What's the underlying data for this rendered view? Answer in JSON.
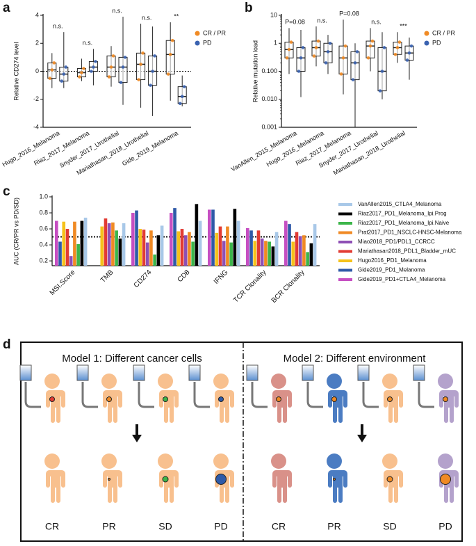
{
  "chart_data": [
    {
      "type": "box",
      "panel_label": "a",
      "ylabel": "Relative CD274 level",
      "categories": [
        "Hugo_2016_Melanoma",
        "Riaz_2017_Melanoma",
        "Snyder_2017_Urothelial",
        "Mariathasan_2018_Urothelial",
        "Gide_2019_Melanoma"
      ],
      "annotations": [
        "n.s.",
        "n.s.",
        "n.s.",
        "n.s.",
        "**"
      ],
      "ylim": [
        -4,
        4
      ],
      "yticks": [
        -4,
        -2,
        0,
        2,
        4
      ],
      "hline": 0,
      "series": [
        {
          "name": "CR / PR",
          "color": "#f08a24",
          "min": [
            -1.2,
            -0.7,
            -1.1,
            -2.6,
            -2.1
          ],
          "q1": [
            -0.5,
            -0.4,
            -0.4,
            -0.6,
            -0.2
          ],
          "median": [
            0.1,
            -0.1,
            0.3,
            0.5,
            1.2
          ],
          "q3": [
            0.6,
            0.2,
            1.1,
            1.3,
            2.2
          ],
          "max": [
            1.3,
            0.9,
            1.8,
            3.4,
            3.5
          ]
        },
        {
          "name": "PD",
          "color": "#3a62b0",
          "min": [
            -1.2,
            -1.0,
            -2.4,
            -3.2,
            -2.5
          ],
          "q1": [
            -0.7,
            0.0,
            -0.8,
            -1.0,
            -2.3
          ],
          "median": [
            -0.2,
            0.3,
            0.3,
            0.0,
            -1.8
          ],
          "q3": [
            0.3,
            0.7,
            1.0,
            1.1,
            -1.1
          ],
          "max": [
            2.8,
            1.6,
            3.9,
            3.2,
            -0.3
          ]
        }
      ]
    },
    {
      "type": "box",
      "panel_label": "b",
      "ylabel": "Relative mutation load",
      "log": true,
      "categories": [
        "VanAllen_2015_Melanoma",
        "Hugo_2016_Melanoma",
        "Riaz_2017_Melanoma",
        "Snyder_2017_Urothelial",
        "Mariathasan_2018_Urothelial"
      ],
      "annotations": [
        "P=0.08",
        "n.s.",
        "P=0.08",
        "n.s.",
        "***"
      ],
      "ylim": [
        0.001,
        10
      ],
      "yticks": [
        0.001,
        {
          "value": 0.01,
          "label": "0.010"
        },
        {
          "value": 0.1,
          "label": "0.100"
        },
        1,
        10
      ],
      "series": [
        {
          "name": "CR / PR",
          "color": "#f08a24",
          "min": [
            0.08,
            0.15,
            0.015,
            0.1,
            0.2
          ],
          "q1": [
            0.3,
            0.35,
            0.08,
            0.3,
            0.4
          ],
          "median": [
            0.6,
            0.7,
            0.3,
            0.8,
            0.7
          ],
          "q3": [
            1.1,
            1.2,
            0.8,
            1.2,
            1.1
          ],
          "max": [
            3.5,
            4,
            7,
            3.5,
            2.5
          ]
        },
        {
          "name": "PD",
          "color": "#3a62b0",
          "min": [
            0.012,
            0.08,
            0.001,
            0.01,
            0.05
          ],
          "q1": [
            0.1,
            0.2,
            0.05,
            0.02,
            0.25
          ],
          "median": [
            0.3,
            0.5,
            0.2,
            0.1,
            0.45
          ],
          "q3": [
            0.7,
            1,
            0.5,
            0.7,
            0.8
          ],
          "max": [
            3,
            2,
            1,
            2.5,
            1.6
          ]
        }
      ]
    },
    {
      "type": "bar",
      "panel_label": "c",
      "ylabel": "AUC (CR/PR vs PD/SD)",
      "categories": [
        "MSI.Score",
        "TMB",
        "CD274",
        "CD8",
        "IFNG",
        "TCR Clonality",
        "BCR Clonality"
      ],
      "ylim": [
        0.14,
        1
      ],
      "yticks": [
        0.2,
        0.4,
        0.6,
        0.8,
        {
          "value": 1,
          "label": "1.0"
        }
      ],
      "hline": 0.5,
      "series": [
        {
          "name": "Gide2019_PD1+CTLA4_Melanoma",
          "color": "#c64fc2",
          "values": [
            0.7,
            null,
            0.8,
            0.8,
            0.84,
            0.61,
            0.7
          ]
        },
        {
          "name": "Gide2019_PD1_Melanoma",
          "color": "#2f5aa8",
          "values": [
            0.44,
            null,
            0.83,
            0.86,
            0.84,
            0.58,
            0.66
          ]
        },
        {
          "name": "Hugo2016_PD1_Melanoma",
          "color": "#f5c21b",
          "values": [
            0.69,
            0.63,
            0.6,
            0.57,
            0.55,
            0.45,
            0.44
          ]
        },
        {
          "name": "Mariathasan2018_PDL1_Bladder_mUC",
          "color": "#e23b33",
          "values": [
            0.6,
            0.73,
            0.59,
            0.6,
            0.63,
            0.58,
            0.56
          ]
        },
        {
          "name": "Miao2018_PD1/PDL1_CCRCC",
          "color": "#8e4fb5",
          "values": [
            0.26,
            0.67,
            0.43,
            0.52,
            0.45,
            0.48,
            0.51
          ]
        },
        {
          "name": "Prat2017_PD1_NSCLC-HNSC-Melanoma",
          "color": "#f08a24",
          "values": [
            0.69,
            0.68,
            0.58,
            0.56,
            0.63,
            0.45,
            0.52
          ]
        },
        {
          "name": "Riaz2017_PD1_Melanoma_Ipi.Naive",
          "color": "#3cb54a",
          "values": [
            0.41,
            0.58,
            0.28,
            0.44,
            0.43,
            0.44,
            0.31
          ]
        },
        {
          "name": "Riaz2017_PD1_Melanoma_Ipi.Prog",
          "color": "#000000",
          "values": [
            0.7,
            0.48,
            0.52,
            0.91,
            0.85,
            0.38,
            0.42
          ]
        },
        {
          "name": "VanAllen2015_CTLA4_Melanoma",
          "color": "#a8c8e8",
          "values": [
            0.74,
            0.67,
            0.64,
            0.7,
            0.7,
            0.56,
            0.66
          ]
        }
      ]
    }
  ],
  "diagram": {
    "panel_label": "d",
    "models": [
      {
        "title": "Model 1: Different cancer cells",
        "responses": [
          "CR",
          "PR",
          "SD",
          "PD"
        ]
      },
      {
        "title": "Model 2: Different environment",
        "responses": [
          "CR",
          "PR",
          "SD",
          "PD"
        ]
      }
    ]
  }
}
